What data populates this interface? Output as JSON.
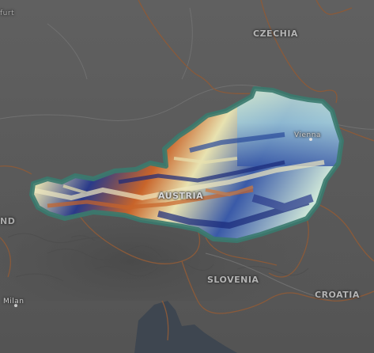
{
  "map": {
    "countries": {
      "czechia": "CZECHIA",
      "austria": "AUSTRIA",
      "slovenia": "SLOVENIA",
      "croatia": "CROATIA"
    },
    "cities": {
      "vienna": "Vienna",
      "milan": "Milan"
    },
    "edge_fragments": {
      "top_left": "furt",
      "left": "ND"
    }
  },
  "colors": {
    "basemap": "#5a5a5a",
    "border": "#8a5a3a",
    "austria_outline": "#3a7a6e",
    "water": "#3e4650",
    "raster_low": "#1a2a7a",
    "raster_mid": "#e8e2b0",
    "raster_high": "#c8642a"
  }
}
